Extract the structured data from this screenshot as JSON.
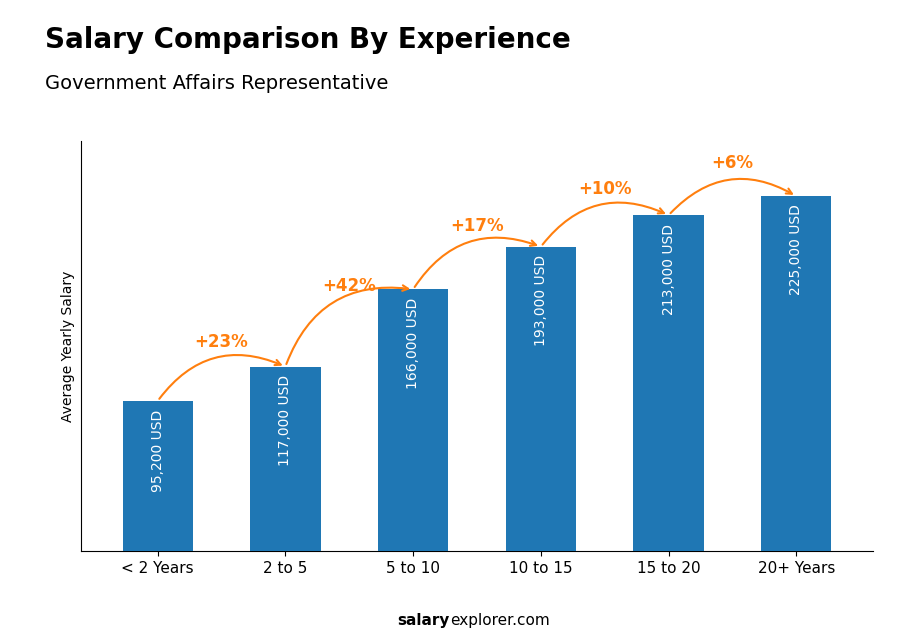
{
  "chart_data": {
    "type": "bar",
    "title": "Salary Comparison By Experience",
    "subtitle": "Government Affairs Representative",
    "ylabel": "Average Yearly Salary",
    "categories": [
      "< 2 Years",
      "2 to 5",
      "5 to 10",
      "10 to 15",
      "15 to 20",
      "20+ Years"
    ],
    "values": [
      95200,
      117000,
      166000,
      193000,
      213000,
      225000
    ],
    "value_labels": [
      "95,200 USD",
      "117,000 USD",
      "166,000 USD",
      "193,000 USD",
      "213,000 USD",
      "225,000 USD"
    ],
    "data_labels": true,
    "annotations": [
      "+23%",
      "+42%",
      "+17%",
      "+10%",
      "+6%"
    ],
    "ylim": [
      0,
      260000
    ],
    "yticks": [],
    "tick_labels": "x",
    "footer": "salaryexplorer.com",
    "footer_bold": "salary"
  }
}
